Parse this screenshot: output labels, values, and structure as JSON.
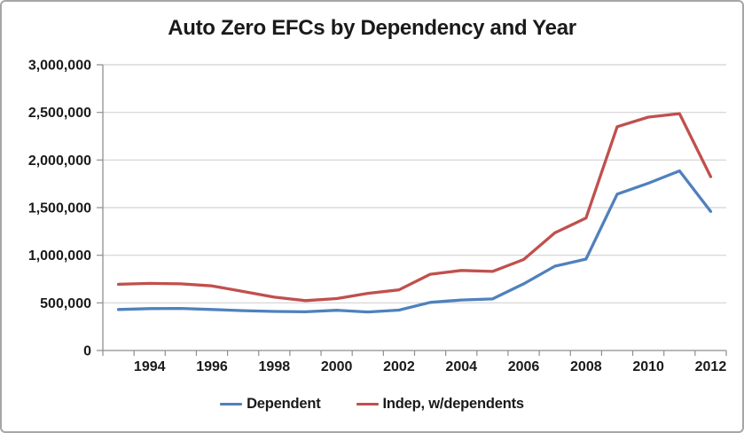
{
  "chart_data": {
    "type": "line",
    "title": "Auto Zero EFCs by Dependency and Year",
    "x": [
      1993,
      1994,
      1995,
      1996,
      1997,
      1998,
      1999,
      2000,
      2001,
      2002,
      2003,
      2004,
      2005,
      2006,
      2007,
      2008,
      2009,
      2010,
      2011,
      2012
    ],
    "x_tick_labels": [
      "1994",
      "1996",
      "1998",
      "2000",
      "2002",
      "2004",
      "2006",
      "2008",
      "2010",
      "2012"
    ],
    "y_ticks": [
      0,
      500000,
      1000000,
      1500000,
      2000000,
      2500000,
      3000000
    ],
    "y_tick_labels": [
      "0",
      "500,000",
      "1,000,000",
      "1,500,000",
      "2,000,000",
      "2,500,000",
      "3,000,000"
    ],
    "ylim": [
      0,
      3000000
    ],
    "grid": "horizontal-only",
    "legend_position": "bottom",
    "series": [
      {
        "name": "Dependent",
        "color": "#4F81BD",
        "values": [
          430000,
          440000,
          442000,
          430000,
          418000,
          410000,
          406000,
          422000,
          404000,
          424000,
          505000,
          530000,
          541000,
          700000,
          885000,
          960000,
          1642000,
          1756000,
          1886000,
          1460000
        ]
      },
      {
        "name": "Indep, w/dependents",
        "color": "#C0504D",
        "values": [
          695000,
          704000,
          700000,
          678000,
          620000,
          560000,
          524000,
          545000,
          600000,
          636000,
          800000,
          840000,
          830000,
          955000,
          1235000,
          1390000,
          2350000,
          2450000,
          2487000,
          1825000
        ]
      }
    ],
    "colors": {
      "gridline": "#D2D2D2",
      "axis": "#8E8E8E",
      "frame_border": "#A6A6A6",
      "text": "#1a1a1a",
      "background": "#FFFFFF"
    }
  }
}
